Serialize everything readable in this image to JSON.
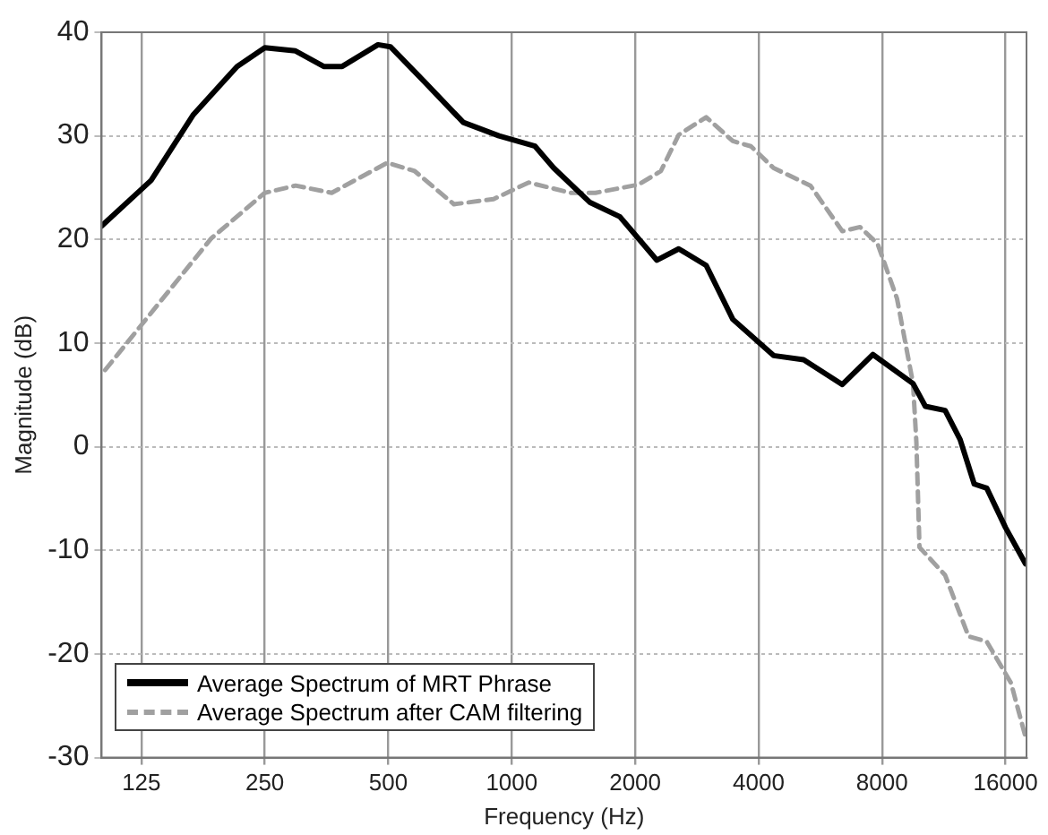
{
  "chart_data": {
    "type": "line",
    "xlabel": "Frequency (Hz)",
    "ylabel": "Magnitude (dB)",
    "log": "x",
    "xlim": [
      100,
      18000
    ],
    "xticks": [
      125,
      250,
      500,
      1000,
      2000,
      4000,
      8000,
      16000
    ],
    "ylim": [
      -30,
      40
    ],
    "yticks": [
      -30,
      -20,
      -10,
      0,
      10,
      20,
      30,
      40
    ],
    "grid": true,
    "legend": "bottom left",
    "marker": "none",
    "series": [
      {
        "name": "Average Spectrum of MRT Phrase",
        "color": "#000000",
        "line_style": "solid",
        "x": [
          100,
          132,
          167,
          214,
          250,
          297,
          348,
          386,
          472,
          506,
          610,
          762,
          931,
          1140,
          1266,
          1549,
          1835,
          2260,
          2554,
          2980,
          3460,
          4350,
          5150,
          6400,
          7600,
          9520,
          10200,
          11400,
          12400,
          13420,
          14400,
          16000,
          17900
        ],
        "values": [
          21.3,
          25.7,
          32,
          36.7,
          38.5,
          38.2,
          36.7,
          36.7,
          38.8,
          38.6,
          35.3,
          31.3,
          30,
          29,
          26.9,
          23.6,
          22.2,
          18,
          19.1,
          17.5,
          12.3,
          8.8,
          8.4,
          6,
          8.9,
          6.1,
          3.9,
          3.5,
          0.7,
          -3.6,
          -4,
          -7.8,
          -11.3
        ]
      },
      {
        "name": "Average Spectrum after CAM filtering",
        "color": "#a0a0a0",
        "line_style": "dashed",
        "x": [
          102,
          123,
          185,
          250,
          297,
          364,
          497,
          580,
          723,
          903,
          1100,
          1395,
          1600,
          2040,
          2310,
          2554,
          2980,
          3460,
          3830,
          4350,
          5350,
          6400,
          7070,
          7800,
          8700,
          9520,
          9700,
          9870,
          11400,
          13000,
          14400,
          16500,
          17900
        ],
        "values": [
          7.4,
          11.4,
          20.1,
          24.5,
          25.2,
          24.5,
          27.4,
          26.6,
          23.4,
          23.9,
          25.5,
          24.5,
          24.5,
          25.3,
          26.6,
          30.1,
          31.8,
          29.5,
          29,
          26.9,
          25.2,
          20.8,
          21.2,
          19.6,
          14.3,
          6.1,
          0.4,
          -9.7,
          -12.4,
          -18.3,
          -18.8,
          -22.8,
          -28
        ]
      }
    ]
  }
}
